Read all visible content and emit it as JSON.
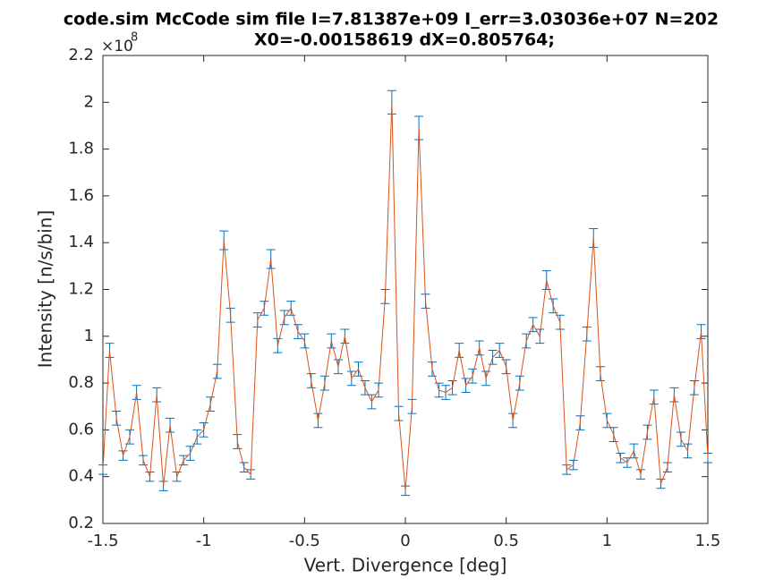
{
  "chart_data": {
    "type": "errorbar",
    "title": [
      "code.sim McCode sim file I=7.81387e+09 I_err=3.03036e+07 N=202",
      "X0=-0.00158619 dX=0.805764;"
    ],
    "xlabel": "Vert. Divergence [deg]",
    "ylabel": "Intensity [n/s/bin]",
    "y_multiplier": "×10",
    "y_exponent": "8",
    "xlim": [
      -1.5,
      1.5
    ],
    "xticks": [
      -1.5,
      -1,
      -0.5,
      0,
      0.5,
      1,
      1.5
    ],
    "ylim": [
      0.2,
      2.2
    ],
    "yticks": [
      0.2,
      0.4,
      0.6,
      0.8,
      1,
      1.2,
      1.4,
      1.6,
      1.8,
      2,
      2.2
    ],
    "line_color": "#d95319",
    "errorbar_color": "#0072bd",
    "x": [
      -1.5,
      -1.467,
      -1.433,
      -1.4,
      -1.367,
      -1.333,
      -1.3,
      -1.267,
      -1.233,
      -1.2,
      -1.167,
      -1.133,
      -1.1,
      -1.067,
      -1.033,
      -1,
      -0.967,
      -0.933,
      -0.9,
      -0.867,
      -0.833,
      -0.8,
      -0.767,
      -0.733,
      -0.7,
      -0.667,
      -0.633,
      -0.6,
      -0.567,
      -0.533,
      -0.5,
      -0.467,
      -0.433,
      -0.4,
      -0.367,
      -0.333,
      -0.3,
      -0.267,
      -0.233,
      -0.2,
      -0.167,
      -0.133,
      -0.1,
      -0.067,
      -0.033,
      0,
      0.033,
      0.067,
      0.1,
      0.133,
      0.167,
      0.2,
      0.233,
      0.267,
      0.3,
      0.333,
      0.367,
      0.4,
      0.433,
      0.467,
      0.5,
      0.533,
      0.567,
      0.6,
      0.633,
      0.667,
      0.7,
      0.733,
      0.767,
      0.8,
      0.833,
      0.867,
      0.9,
      0.933,
      0.967,
      1,
      1.033,
      1.067,
      1.1,
      1.133,
      1.167,
      1.2,
      1.233,
      1.267,
      1.3,
      1.333,
      1.367,
      1.4,
      1.433,
      1.467,
      1.5
    ],
    "values": [
      0.43,
      0.94,
      0.65,
      0.49,
      0.57,
      0.76,
      0.47,
      0.4,
      0.75,
      0.36,
      0.62,
      0.4,
      0.47,
      0.5,
      0.57,
      0.6,
      0.71,
      0.85,
      1.41,
      1.09,
      0.55,
      0.44,
      0.41,
      1.07,
      1.12,
      1.33,
      0.96,
      1.08,
      1.12,
      1.02,
      0.98,
      0.81,
      0.64,
      0.8,
      0.98,
      0.87,
      1.0,
      0.82,
      0.86,
      0.78,
      0.72,
      0.77,
      1.17,
      2.0,
      0.67,
      0.34,
      0.7,
      1.89,
      1.15,
      0.86,
      0.77,
      0.76,
      0.78,
      0.94,
      0.79,
      0.83,
      0.95,
      0.82,
      0.91,
      0.94,
      0.87,
      0.64,
      0.8,
      0.98,
      1.05,
      1.0,
      1.24,
      1.13,
      1.06,
      0.43,
      0.45,
      0.63,
      1.01,
      1.42,
      0.84,
      0.64,
      0.58,
      0.48,
      0.46,
      0.51,
      0.41,
      0.59,
      0.74,
      0.37,
      0.44,
      0.75,
      0.56,
      0.51,
      0.78,
      1.02,
      0.48
    ],
    "errors": [
      0.02,
      0.03,
      0.03,
      0.02,
      0.03,
      0.03,
      0.02,
      0.02,
      0.03,
      0.02,
      0.03,
      0.02,
      0.02,
      0.03,
      0.03,
      0.03,
      0.03,
      0.03,
      0.04,
      0.03,
      0.03,
      0.02,
      0.02,
      0.03,
      0.03,
      0.04,
      0.03,
      0.03,
      0.03,
      0.03,
      0.03,
      0.03,
      0.03,
      0.03,
      0.03,
      0.03,
      0.03,
      0.03,
      0.03,
      0.03,
      0.03,
      0.03,
      0.03,
      0.05,
      0.03,
      0.02,
      0.03,
      0.05,
      0.03,
      0.03,
      0.03,
      0.03,
      0.03,
      0.03,
      0.03,
      0.03,
      0.03,
      0.03,
      0.03,
      0.03,
      0.03,
      0.03,
      0.03,
      0.03,
      0.03,
      0.03,
      0.04,
      0.03,
      0.03,
      0.02,
      0.02,
      0.03,
      0.03,
      0.04,
      0.03,
      0.03,
      0.03,
      0.02,
      0.02,
      0.03,
      0.02,
      0.03,
      0.03,
      0.02,
      0.02,
      0.03,
      0.03,
      0.03,
      0.03,
      0.03,
      0.02
    ]
  }
}
